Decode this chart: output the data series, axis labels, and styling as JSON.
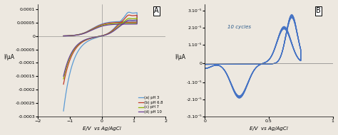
{
  "panel_A": {
    "label": "A",
    "xlabel": "E/V  vs Ag/AgCl",
    "ylabel": "I/μA",
    "xlim": [
      -2,
      2
    ],
    "ylim": [
      -0.0003,
      0.00012
    ],
    "yticks": [
      0.0001,
      5e-05,
      0,
      -5e-05,
      -0.0001,
      -0.00015,
      -0.0002,
      -0.00025,
      -0.0003
    ],
    "xticks": [
      -2,
      -1,
      0,
      1,
      2
    ],
    "legend": [
      "(a) pH 3",
      "(b) pH 6.8",
      "(c) pH 7",
      "(d) pH 10"
    ],
    "colors": [
      "#5b9bd5",
      "#c0392b",
      "#8db600",
      "#6a3d9a"
    ],
    "bg_color": "#ede8e0"
  },
  "panel_B": {
    "label": "B",
    "xlabel": "E/V  vs Ag/AgCl",
    "ylabel": "I/μA",
    "xlim": [
      0,
      1
    ],
    "ylim": [
      -3.1e-05,
      3.5e-05
    ],
    "yticks": [
      3.1e-05,
      2.1e-05,
      1.1e-05,
      0,
      -1.1e-05,
      -2.1e-05,
      -3.1e-05
    ],
    "ytick_labels": [
      "3.10⁻⁵",
      "2.10⁻⁵",
      "1.10⁻⁵",
      "0",
      "-1.10⁻⁵",
      "-2.10⁻⁵",
      "-3.10⁻⁵"
    ],
    "xticks": [
      0,
      0.5,
      1
    ],
    "annotation": "10 cycles",
    "color": "#4472c4",
    "bg_color": "#ede8e0"
  }
}
